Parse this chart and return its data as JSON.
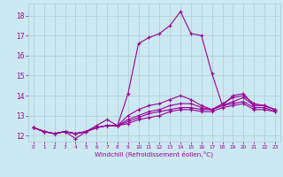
{
  "xlabel": "Windchill (Refroidissement éolien,°C)",
  "bg_color": "#cce8f0",
  "line_color": "#990099",
  "grid_color": "#aaccd4",
  "xlim": [
    -0.5,
    23.5
  ],
  "ylim": [
    11.7,
    18.6
  ],
  "xticks": [
    0,
    1,
    2,
    3,
    4,
    5,
    6,
    7,
    8,
    9,
    10,
    11,
    12,
    13,
    14,
    15,
    16,
    17,
    18,
    19,
    20,
    21,
    22,
    23
  ],
  "yticks": [
    12,
    13,
    14,
    15,
    16,
    17,
    18
  ],
  "series": [
    [
      12.4,
      12.2,
      12.1,
      12.2,
      11.85,
      12.2,
      12.5,
      12.8,
      12.5,
      14.1,
      16.6,
      16.9,
      17.1,
      17.5,
      18.2,
      17.1,
      17.0,
      15.1,
      13.5,
      14.0,
      14.1,
      13.5,
      13.5,
      13.3
    ],
    [
      12.4,
      12.2,
      12.1,
      12.2,
      12.1,
      12.2,
      12.4,
      12.5,
      12.5,
      13.0,
      13.3,
      13.5,
      13.6,
      13.8,
      14.0,
      13.8,
      13.5,
      13.3,
      13.6,
      13.9,
      14.0,
      13.6,
      13.5,
      13.3
    ],
    [
      12.4,
      12.2,
      12.1,
      12.2,
      12.1,
      12.2,
      12.4,
      12.5,
      12.5,
      12.8,
      13.0,
      13.2,
      13.3,
      13.5,
      13.6,
      13.6,
      13.4,
      13.3,
      13.5,
      13.7,
      13.9,
      13.5,
      13.5,
      13.3
    ],
    [
      12.4,
      12.2,
      12.1,
      12.2,
      12.1,
      12.2,
      12.4,
      12.5,
      12.5,
      12.7,
      12.9,
      13.1,
      13.2,
      13.3,
      13.4,
      13.4,
      13.3,
      13.3,
      13.5,
      13.6,
      13.7,
      13.4,
      13.4,
      13.2
    ],
    [
      12.4,
      12.2,
      12.1,
      12.2,
      12.1,
      12.2,
      12.4,
      12.5,
      12.5,
      12.6,
      12.8,
      12.9,
      13.0,
      13.2,
      13.3,
      13.3,
      13.2,
      13.2,
      13.4,
      13.5,
      13.6,
      13.3,
      13.3,
      13.2
    ]
  ]
}
